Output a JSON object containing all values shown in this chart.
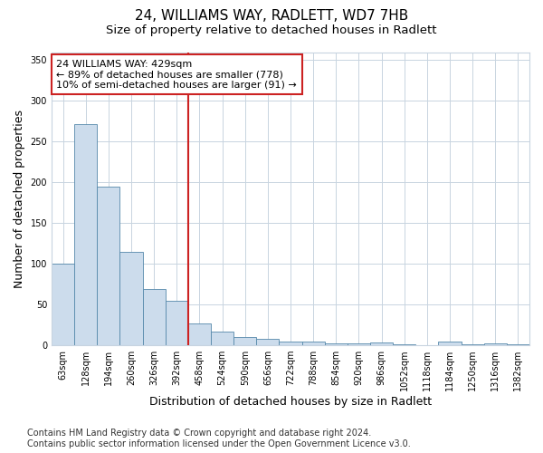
{
  "title": "24, WILLIAMS WAY, RADLETT, WD7 7HB",
  "subtitle": "Size of property relative to detached houses in Radlett",
  "xlabel": "Distribution of detached houses by size in Radlett",
  "ylabel": "Number of detached properties",
  "categories": [
    "63sqm",
    "128sqm",
    "194sqm",
    "260sqm",
    "326sqm",
    "392sqm",
    "458sqm",
    "524sqm",
    "590sqm",
    "656sqm",
    "722sqm",
    "788sqm",
    "854sqm",
    "920sqm",
    "986sqm",
    "1052sqm",
    "1118sqm",
    "1184sqm",
    "1250sqm",
    "1316sqm",
    "1382sqm"
  ],
  "values": [
    100,
    271,
    195,
    115,
    69,
    55,
    27,
    17,
    10,
    8,
    5,
    5,
    2,
    2,
    3,
    1,
    0,
    4,
    1,
    2,
    1
  ],
  "bar_color": "#ccdcec",
  "bar_edge_color": "#5588aa",
  "vline_index": 6,
  "vline_color": "#cc2222",
  "annotation_line1": "24 WILLIAMS WAY: 429sqm",
  "annotation_line2": "← 89% of detached houses are smaller (778)",
  "annotation_line3": "10% of semi-detached houses are larger (91) →",
  "annotation_box_color": "#cc2222",
  "ylim": [
    0,
    360
  ],
  "yticks": [
    0,
    50,
    100,
    150,
    200,
    250,
    300,
    350
  ],
  "footer_line1": "Contains HM Land Registry data © Crown copyright and database right 2024.",
  "footer_line2": "Contains public sector information licensed under the Open Government Licence v3.0.",
  "bg_color": "#ffffff",
  "plot_bg_color": "#ffffff",
  "grid_color": "#c8d4e0",
  "title_fontsize": 11,
  "subtitle_fontsize": 9.5,
  "axis_label_fontsize": 9,
  "tick_fontsize": 7,
  "annotation_fontsize": 8,
  "footer_fontsize": 7
}
